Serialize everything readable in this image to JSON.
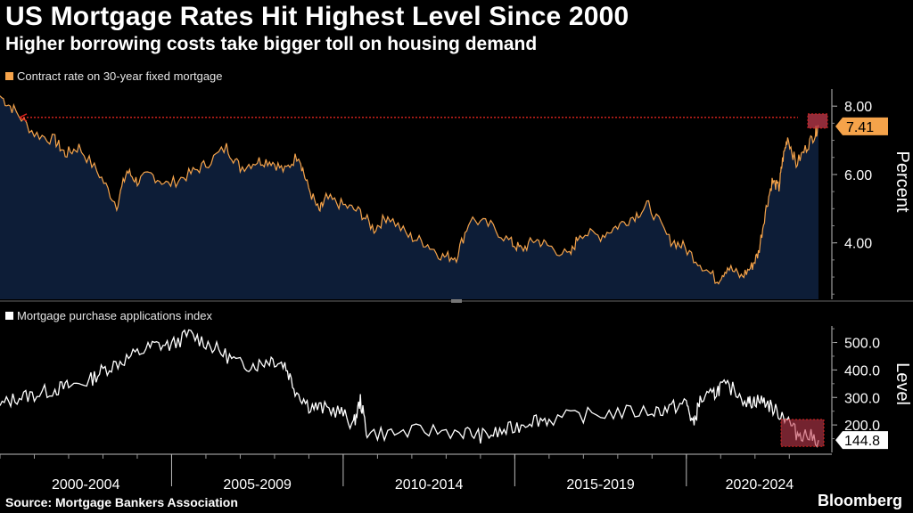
{
  "header": {
    "title": "US Mortgage Rates Hit Highest Level Since 2000",
    "subtitle": "Higher borrowing costs take bigger toll on housing demand"
  },
  "footer": {
    "source": "Source: Mortgage Bankers Association",
    "brand": "Bloomberg"
  },
  "colors": {
    "rate": "#f5a34a",
    "area": "#0d1d37",
    "index": "#ffffff",
    "ref": "#e0251f",
    "highlight": "#c23b4e"
  },
  "chart_data": [
    {
      "type": "area",
      "legend": "Contract rate on 30-year fixed mortgage",
      "ylabel": "Percent",
      "yticks": [
        {
          "value": 8,
          "label": "8.00"
        },
        {
          "value": 6,
          "label": "6.00"
        },
        {
          "value": 4,
          "label": "4.00"
        }
      ],
      "ylim": [
        2.35,
        8.5
      ],
      "xlim": [
        2000.0,
        2023.85
      ],
      "latest_label": "7.41",
      "x": [
        2000.0,
        2000.4,
        2001.0,
        2001.6,
        2001.9,
        2002.3,
        2002.9,
        2003.4,
        2003.7,
        2004.0,
        2004.4,
        2004.9,
        2005.5,
        2006.0,
        2006.6,
        2007.0,
        2007.5,
        2007.9,
        2008.3,
        2008.7,
        2008.95,
        2009.3,
        2009.5,
        2010.0,
        2010.5,
        2010.9,
        2011.3,
        2011.9,
        2012.4,
        2012.9,
        2013.3,
        2013.7,
        2014.3,
        2014.9,
        2015.2,
        2015.6,
        2016.0,
        2016.6,
        2016.9,
        2017.5,
        2018.0,
        2018.5,
        2018.9,
        2019.5,
        2019.9,
        2020.4,
        2020.9,
        2021.2,
        2021.6,
        2021.9,
        2022.1,
        2022.3,
        2022.5,
        2022.7,
        2022.8,
        2022.95,
        2023.2,
        2023.5,
        2023.75,
        2023.85
      ],
      "values": [
        8.3,
        7.9,
        7.2,
        7.0,
        6.6,
        6.8,
        6.0,
        5.1,
        6.1,
        5.8,
        6.0,
        5.7,
        6.0,
        6.3,
        6.8,
        6.2,
        6.4,
        6.4,
        6.1,
        6.6,
        5.7,
        4.9,
        5.3,
        5.1,
        4.9,
        4.4,
        4.8,
        4.2,
        4.0,
        3.6,
        3.6,
        4.7,
        4.5,
        4.0,
        3.8,
        4.1,
        3.9,
        3.6,
        4.3,
        4.2,
        4.5,
        4.8,
        5.1,
        4.1,
        3.9,
        3.4,
        2.9,
        3.3,
        3.0,
        3.3,
        3.7,
        4.9,
        5.8,
        5.6,
        6.4,
        7.1,
        6.3,
        6.8,
        7.2,
        7.41
      ]
    },
    {
      "type": "line",
      "legend": "Mortgage purchase applications index",
      "ylabel": "Level",
      "yticks": [
        {
          "value": 500,
          "label": "500.0"
        },
        {
          "value": 400,
          "label": "400.0"
        },
        {
          "value": 300,
          "label": "300.0"
        },
        {
          "value": 200,
          "label": "200.0"
        }
      ],
      "ylim": [
        100,
        560
      ],
      "xlim": [
        2000.0,
        2023.85
      ],
      "latest_label": "144.8",
      "x": [
        2000.0,
        2000.5,
        2001.0,
        2001.6,
        2002.0,
        2002.6,
        2003.0,
        2003.5,
        2004.0,
        2004.5,
        2005.0,
        2005.5,
        2006.0,
        2006.5,
        2007.0,
        2007.5,
        2007.9,
        2008.3,
        2008.6,
        2009.0,
        2009.4,
        2009.9,
        2010.3,
        2010.5,
        2010.7,
        2011.5,
        2012.5,
        2013.5,
        2014.0,
        2014.5,
        2015.0,
        2015.5,
        2016.0,
        2017.0,
        2018.0,
        2019.0,
        2019.5,
        2020.0,
        2020.2,
        2020.4,
        2020.8,
        2021.0,
        2021.4,
        2021.8,
        2022.0,
        2022.3,
        2022.6,
        2022.9,
        2023.2,
        2023.5,
        2023.85
      ],
      "values": [
        270,
        300,
        310,
        330,
        340,
        360,
        400,
        430,
        460,
        490,
        490,
        530,
        500,
        460,
        420,
        420,
        440,
        420,
        330,
        270,
        260,
        250,
        200,
        290,
        170,
        170,
        180,
        175,
        160,
        170,
        190,
        220,
        220,
        235,
        245,
        250,
        260,
        280,
        200,
        290,
        310,
        340,
        330,
        280,
        290,
        285,
        250,
        230,
        170,
        165,
        144.8
      ]
    }
  ],
  "x_categories": [
    "2000-2004",
    "2005-2009",
    "2010-2014",
    "2015-2019",
    "2020-2024"
  ]
}
